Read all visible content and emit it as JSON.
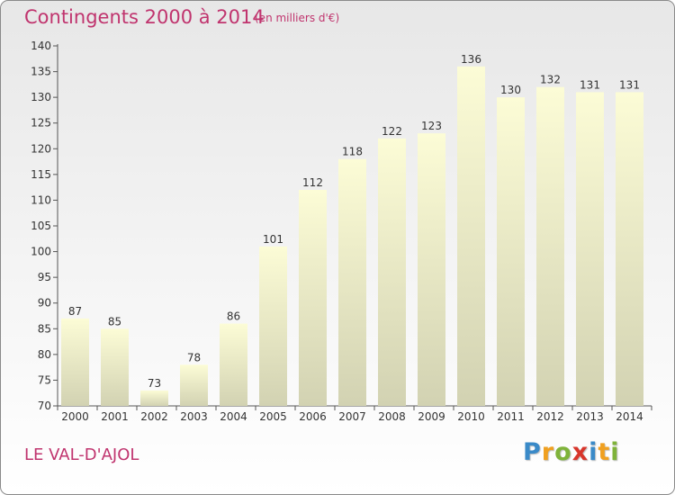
{
  "chart_data": {
    "type": "bar",
    "title": "Contingents 2000 à 2014",
    "subtitle": "(en milliers d'€)",
    "categories": [
      "2000",
      "2001",
      "2002",
      "2003",
      "2004",
      "2005",
      "2006",
      "2007",
      "2008",
      "2009",
      "2010",
      "2011",
      "2012",
      "2013",
      "2014"
    ],
    "values": [
      87,
      85,
      73,
      78,
      86,
      101,
      112,
      118,
      122,
      123,
      136,
      130,
      132,
      131,
      131
    ],
    "ylim": [
      70,
      140
    ],
    "yticks": [
      70,
      75,
      80,
      85,
      90,
      95,
      100,
      105,
      110,
      115,
      120,
      125,
      130,
      135,
      140
    ],
    "grid": false,
    "legend": "none",
    "colors": {
      "bar_top": "#fcfcd6",
      "bar_bottom": "#d2d2b2",
      "axis": "#555555",
      "text": "#c0346e"
    }
  },
  "footer": {
    "commune": "LE VAL-D'AJOL",
    "brand_letters": [
      {
        "ch": "P",
        "color": "#3a8ac8"
      },
      {
        "ch": "r",
        "color": "#f0a020"
      },
      {
        "ch": "o",
        "color": "#7fb33a"
      },
      {
        "ch": "x",
        "color": "#d8362b"
      },
      {
        "ch": "i",
        "color": "#3a8ac8"
      },
      {
        "ch": "t",
        "color": "#f0a020"
      },
      {
        "ch": "i",
        "color": "#7fb33a"
      }
    ]
  }
}
